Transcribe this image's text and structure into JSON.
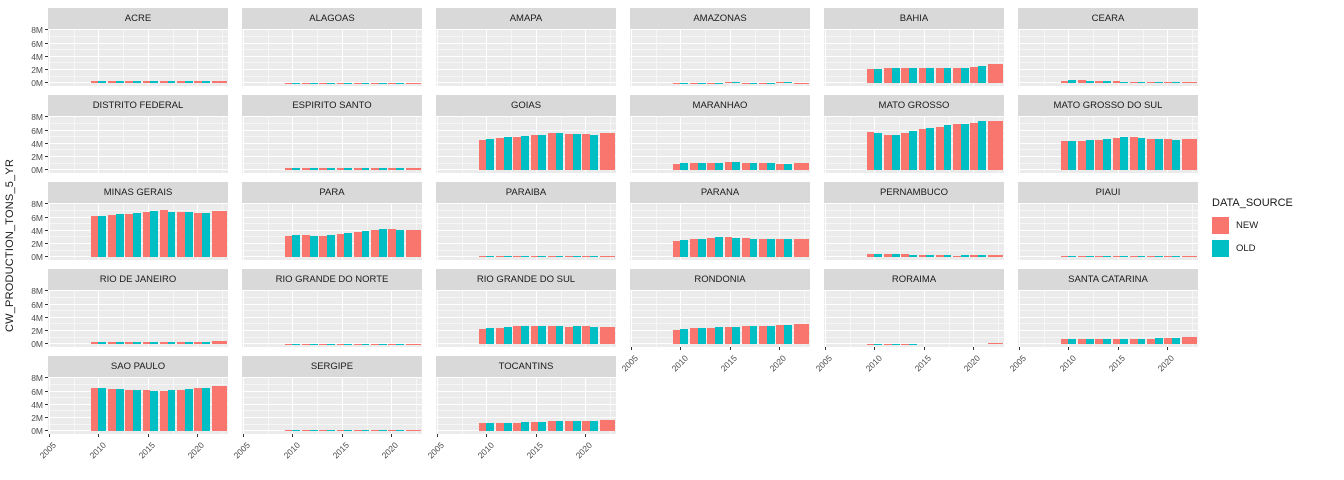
{
  "chart_data": {
    "type": "bar",
    "title": "",
    "xlabel": "",
    "ylabel": "CW_PRODUCTION_TONS_5_YR",
    "value_unit": "M",
    "legend": {
      "title": "DATA_SOURCE",
      "position": "right",
      "entries": [
        {
          "label": "NEW",
          "color": "#F8766D"
        },
        {
          "label": "OLD",
          "color": "#00BFC4"
        }
      ]
    },
    "x_ticks": [
      2005,
      2010,
      2015,
      2020
    ],
    "x_minor_ticks": [
      2007.5,
      2012.5,
      2017.5,
      2022.5
    ],
    "y_ticks": [
      {
        "v": 0,
        "label": "0M"
      },
      {
        "v": 2,
        "label": "2M"
      },
      {
        "v": 4,
        "label": "4M"
      },
      {
        "v": 6,
        "label": "6M"
      },
      {
        "v": 8,
        "label": "8M"
      }
    ],
    "y_minor_ticks": [
      1,
      3,
      5,
      7
    ],
    "x_domain": [
      2004.9,
      2023.1
    ],
    "y_domain": [
      -0.4,
      8.2
    ],
    "grid": true,
    "period_centers": [
      2010,
      2011.75,
      2013.5,
      2015.25,
      2017,
      2018.75,
      2020.5,
      2022.25
    ],
    "bar_half_width_years": 0.79,
    "facets_note": "values in millions of tons; last period has NEW only (full-width bar)",
    "facets": [
      {
        "name": "ACRE",
        "new": [
          0.35,
          0.35,
          0.35,
          0.35,
          0.35,
          0.35,
          0.35,
          0.4
        ],
        "old": [
          0.35,
          0.35,
          0.35,
          0.35,
          0.35,
          0.35,
          0.35,
          null
        ],
        "axis": false
      },
      {
        "name": "ALAGOAS",
        "new": [
          0.08,
          0.08,
          0.08,
          0.08,
          0.08,
          0.08,
          0.08,
          0.1
        ],
        "old": [
          0.08,
          0.08,
          0.08,
          0.08,
          0.08,
          0.08,
          0.08,
          null
        ],
        "axis": false
      },
      {
        "name": "AMAPA",
        "new": [
          0.01,
          0.01,
          0.01,
          0.01,
          0.01,
          0.01,
          0.01,
          0.01
        ],
        "old": [
          0.01,
          0.01,
          0.01,
          0.01,
          0.01,
          0.01,
          0.01,
          null
        ],
        "axis": false
      },
      {
        "name": "AMAZONAS",
        "new": [
          0.1,
          0.12,
          0.12,
          0.18,
          0.12,
          0.1,
          0.18,
          0.12
        ],
        "old": [
          0.1,
          0.12,
          0.12,
          0.15,
          0.12,
          0.12,
          0.15,
          null
        ],
        "axis": false
      },
      {
        "name": "BAHIA",
        "new": [
          2.2,
          2.3,
          2.3,
          2.3,
          2.3,
          2.3,
          2.4,
          2.9
        ],
        "old": [
          2.2,
          2.3,
          2.3,
          2.3,
          2.3,
          2.3,
          2.6,
          null
        ],
        "axis": false
      },
      {
        "name": "CEARA",
        "new": [
          0.4,
          0.45,
          0.35,
          0.3,
          0.2,
          0.18,
          0.15,
          0.2
        ],
        "old": [
          0.45,
          0.4,
          0.35,
          0.25,
          0.18,
          0.15,
          0.15,
          null
        ],
        "axis": false
      },
      {
        "name": "DISTRITO FEDERAL",
        "new": [
          0.01,
          0.01,
          0.01,
          0.01,
          0.01,
          0.01,
          0.01,
          0.01
        ],
        "old": [
          0.01,
          0.01,
          0.01,
          0.01,
          0.01,
          0.01,
          0.01,
          null
        ],
        "axis": false
      },
      {
        "name": "ESPIRITO SANTO",
        "new": [
          0.3,
          0.3,
          0.3,
          0.3,
          0.3,
          0.3,
          0.3,
          0.3
        ],
        "old": [
          0.3,
          0.3,
          0.3,
          0.3,
          0.3,
          0.3,
          0.3,
          null
        ],
        "axis": false
      },
      {
        "name": "GOIAS",
        "new": [
          4.6,
          4.9,
          5.1,
          5.3,
          5.6,
          5.5,
          5.5,
          5.6
        ],
        "old": [
          4.7,
          5.0,
          5.2,
          5.4,
          5.6,
          5.5,
          5.4,
          null
        ],
        "axis": false
      },
      {
        "name": "MARANHAO",
        "new": [
          1.0,
          1.1,
          1.15,
          1.25,
          1.1,
          1.1,
          1.0,
          1.1
        ],
        "old": [
          1.05,
          1.1,
          1.1,
          1.2,
          1.1,
          1.05,
          1.0,
          null
        ],
        "axis": false
      },
      {
        "name": "MATO GROSSO",
        "new": [
          5.8,
          5.3,
          5.7,
          6.2,
          6.6,
          7.0,
          7.2,
          7.5
        ],
        "old": [
          5.7,
          5.4,
          5.9,
          6.4,
          6.8,
          7.0,
          7.4,
          null
        ],
        "axis": false
      },
      {
        "name": "MATO GROSSO DO SUL",
        "new": [
          4.5,
          4.5,
          4.6,
          4.9,
          5.0,
          4.8,
          4.7,
          4.7
        ],
        "old": [
          4.5,
          4.6,
          4.8,
          5.0,
          4.9,
          4.8,
          4.6,
          null
        ],
        "axis": false
      },
      {
        "name": "MINAS GERAIS",
        "new": [
          6.2,
          6.4,
          6.6,
          6.9,
          7.1,
          6.8,
          6.7,
          7.0
        ],
        "old": [
          6.3,
          6.5,
          6.7,
          7.0,
          6.9,
          6.8,
          6.7,
          null
        ],
        "axis": false
      },
      {
        "name": "PARA",
        "new": [
          3.3,
          3.4,
          3.3,
          3.6,
          3.9,
          4.2,
          4.3,
          4.1
        ],
        "old": [
          3.4,
          3.3,
          3.4,
          3.7,
          4.0,
          4.3,
          4.2,
          null
        ],
        "axis": false
      },
      {
        "name": "PARAIBA",
        "new": [
          0.15,
          0.15,
          0.15,
          0.15,
          0.15,
          0.15,
          0.15,
          0.15
        ],
        "old": [
          0.15,
          0.15,
          0.15,
          0.15,
          0.15,
          0.15,
          0.15,
          null
        ],
        "axis": false
      },
      {
        "name": "PARANA",
        "new": [
          2.5,
          2.7,
          2.9,
          3.0,
          2.9,
          2.8,
          2.7,
          2.8
        ],
        "old": [
          2.6,
          2.8,
          3.0,
          2.9,
          2.8,
          2.7,
          2.8,
          null
        ],
        "axis": false
      },
      {
        "name": "PERNAMBUCO",
        "new": [
          0.45,
          0.5,
          0.45,
          0.3,
          0.3,
          0.28,
          0.3,
          0.4
        ],
        "old": [
          0.5,
          0.45,
          0.4,
          0.3,
          0.3,
          0.3,
          0.3,
          null
        ],
        "axis": false
      },
      {
        "name": "PIAUI",
        "new": [
          0.15,
          0.15,
          0.15,
          0.15,
          0.15,
          0.15,
          0.15,
          0.15
        ],
        "old": [
          0.15,
          0.15,
          0.15,
          0.15,
          0.15,
          0.15,
          0.15,
          null
        ],
        "axis": false
      },
      {
        "name": "RIO DE JANEIRO",
        "new": [
          0.3,
          0.4,
          0.4,
          0.4,
          0.4,
          0.4,
          0.4,
          0.45
        ],
        "old": [
          0.35,
          0.4,
          0.4,
          0.4,
          0.4,
          0.4,
          0.4,
          null
        ],
        "axis": false
      },
      {
        "name": "RIO GRANDE DO NORTE",
        "new": [
          0.1,
          0.1,
          0.1,
          0.1,
          0.1,
          0.1,
          0.1,
          0.1
        ],
        "old": [
          0.1,
          0.1,
          0.1,
          0.1,
          0.1,
          0.1,
          0.1,
          null
        ],
        "axis": false
      },
      {
        "name": "RIO GRANDE DO SUL",
        "new": [
          2.3,
          2.5,
          2.7,
          2.8,
          2.7,
          2.6,
          2.7,
          2.6
        ],
        "old": [
          2.4,
          2.6,
          2.8,
          2.8,
          2.7,
          2.7,
          2.6,
          null
        ],
        "axis": false
      },
      {
        "name": "RONDONIA",
        "new": [
          2.2,
          2.4,
          2.5,
          2.6,
          2.7,
          2.7,
          2.9,
          3.0
        ],
        "old": [
          2.3,
          2.4,
          2.6,
          2.6,
          2.7,
          2.8,
          2.9,
          null
        ],
        "axis": true
      },
      {
        "name": "RORAIMA",
        "new": [
          0.08,
          0.1,
          0.09,
          null,
          null,
          null,
          null,
          0.15
        ],
        "old": [
          0.1,
          0.1,
          0.08,
          null,
          null,
          null,
          null,
          null
        ],
        "axis": true
      },
      {
        "name": "SANTA CATARINA",
        "new": [
          0.8,
          0.85,
          0.85,
          0.85,
          0.85,
          0.85,
          0.9,
          1.1
        ],
        "old": [
          0.85,
          0.85,
          0.85,
          0.85,
          0.85,
          0.9,
          0.9,
          null
        ],
        "axis": true
      },
      {
        "name": "SAO PAULO",
        "new": [
          6.6,
          6.4,
          6.3,
          6.2,
          6.1,
          6.3,
          6.5,
          6.8
        ],
        "old": [
          6.6,
          6.4,
          6.2,
          6.1,
          6.2,
          6.4,
          6.6,
          null
        ],
        "axis": true
      },
      {
        "name": "SERGIPE",
        "new": [
          0.2,
          0.2,
          0.2,
          0.2,
          0.2,
          0.2,
          0.2,
          0.2
        ],
        "old": [
          0.2,
          0.2,
          0.2,
          0.2,
          0.2,
          0.2,
          0.2,
          null
        ],
        "axis": true
      },
      {
        "name": "TOCANTINS",
        "new": [
          1.3,
          1.3,
          1.3,
          1.4,
          1.5,
          1.5,
          1.6,
          1.7
        ],
        "old": [
          1.3,
          1.3,
          1.35,
          1.45,
          1.5,
          1.55,
          1.6,
          null
        ],
        "axis": true
      }
    ]
  },
  "theme": {
    "panel_bg": "#EBEBEB",
    "strip_bg": "#D9D9D9",
    "gridline": "#FFFFFF",
    "axis_text": "#4D4D4D",
    "text": "#1A1A1A",
    "new_color": "#F8766D",
    "old_color": "#00BFC4"
  }
}
